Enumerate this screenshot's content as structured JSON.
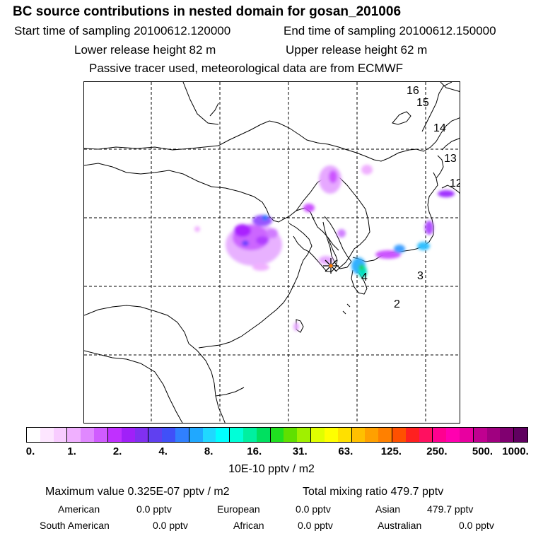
{
  "header": {
    "title": "BC  source contributions in nested domain for gosan_201006",
    "start_time": "Start time of sampling 20100612.120000",
    "end_time": "End time of sampling 20100612.150000",
    "lower_height": "Lower release height   82 m",
    "upper_height": "Upper release height   62 m",
    "tracer_note": "Passive tracer used, meteorological data are from ECMWF"
  },
  "map": {
    "ring_labels": [
      "16",
      "15",
      "14",
      "13",
      "12",
      "4",
      "3",
      "2"
    ],
    "receptor_icon": "asterisk-icon"
  },
  "colorbar": {
    "ticks": [
      "0.",
      "1.",
      "2.",
      "4.",
      "8.",
      "16.",
      "31.",
      "63.",
      "125.",
      "250.",
      "500.",
      "1000."
    ],
    "colors": [
      "#ffffff",
      "#fde6ff",
      "#f8ccff",
      "#f0b0ff",
      "#e088ff",
      "#d05cff",
      "#c030ff",
      "#a020f8",
      "#8030f0",
      "#6040f0",
      "#4050f8",
      "#3080ff",
      "#20a8ff",
      "#20d8ff",
      "#00ffff",
      "#00ffd8",
      "#00f0a0",
      "#00e060",
      "#20e020",
      "#60e000",
      "#a0f000",
      "#e0ff00",
      "#ffff00",
      "#ffe000",
      "#ffc000",
      "#ffa000",
      "#ff8000",
      "#ff5000",
      "#ff2020",
      "#ff1060",
      "#ff0090",
      "#ff00b0",
      "#e800a0",
      "#c00090",
      "#a00080",
      "#800070",
      "#600060"
    ],
    "unit": "10E-10 pptv / m2"
  },
  "summary": {
    "max_label": "Maximum value  0.325E-07 pptv / m2",
    "total_label": "Total mixing ratio     479.7 pptv",
    "regions_row1": [
      {
        "name": "American",
        "value": "0.0 pptv"
      },
      {
        "name": "European",
        "value": "0.0 pptv"
      },
      {
        "name": "Asian",
        "value": "479.7 pptv"
      }
    ],
    "regions_row2": [
      {
        "name": "South American",
        "value": "0.0 pptv"
      },
      {
        "name": "African",
        "value": "0.0 pptv"
      },
      {
        "name": "Australian",
        "value": "0.0 pptv"
      }
    ]
  }
}
